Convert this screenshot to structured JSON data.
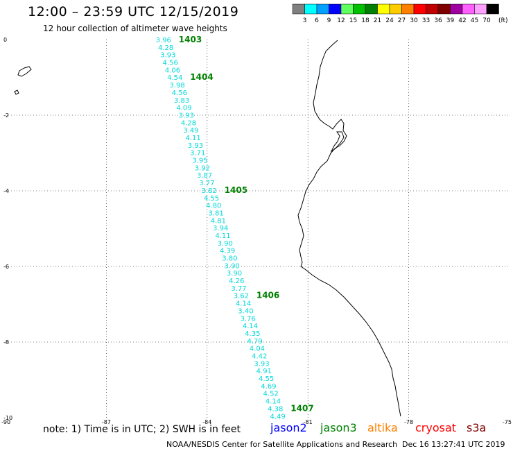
{
  "header": {
    "title": "12:00 – 23:59 UTC 12/15/2019",
    "subtitle": "12 hour collection of altimeter wave heights"
  },
  "legend": {
    "unit_label": "(ft)",
    "items": [
      {
        "label": "3",
        "color": "#808080"
      },
      {
        "label": "6",
        "color": "#00ffff"
      },
      {
        "label": "9",
        "color": "#00a0ff"
      },
      {
        "label": "12",
        "color": "#0000ff"
      },
      {
        "label": "15",
        "color": "#60ff60"
      },
      {
        "label": "18",
        "color": "#00c000"
      },
      {
        "label": "21",
        "color": "#008000"
      },
      {
        "label": "24",
        "color": "#ffff00"
      },
      {
        "label": "27",
        "color": "#ffcc00"
      },
      {
        "label": "30",
        "color": "#ff8000"
      },
      {
        "label": "33",
        "color": "#ff0000"
      },
      {
        "label": "36",
        "color": "#c00000"
      },
      {
        "label": "39",
        "color": "#800000"
      },
      {
        "label": "42",
        "color": "#a000a0"
      },
      {
        "label": "45",
        "color": "#ff60ff"
      },
      {
        "label": "70",
        "color": "#ffa0ff"
      },
      {
        "label": "",
        "color": "#000000"
      }
    ]
  },
  "map": {
    "lat_labels": [
      "0",
      "-2",
      "-4",
      "-6",
      "-8",
      "-10"
    ],
    "lon_labels": [
      "-90",
      "-87",
      "-84",
      "-81",
      "-78",
      "-75"
    ],
    "lat_values": [
      0,
      -2,
      -4,
      -6,
      -8,
      -10
    ],
    "lon_values": [
      -90,
      -87,
      -84,
      -81,
      -78,
      -75
    ],
    "grid": true,
    "track_color": "#00d8d8",
    "time_color": "#008000"
  },
  "chart_data": {
    "type": "scatter",
    "title": "12:00 – 23:59 UTC 12/15/2019",
    "subtitle": "12 hour collection of altimeter wave heights",
    "xlim": [
      -90,
      -75
    ],
    "ylim": [
      -10,
      0
    ],
    "unit": "ft",
    "swh_values": [
      "3.96",
      "4.28",
      "3.93",
      "4.56",
      "4.06",
      "4.54",
      "3.98",
      "4.56",
      "3.83",
      "4.09",
      "3.93",
      "4.28",
      "3.49",
      "4.11",
      "3.93",
      "3.71",
      "3.95",
      "3.92",
      "3.87",
      "3.77",
      "3.82",
      "4.55",
      "4.80",
      "3.81",
      "4.81",
      "3.94",
      "4.11",
      "3.90",
      "4.39",
      "3.80",
      "3.90",
      "3.90",
      "4.26",
      "3.77",
      "3.62",
      "4.14",
      "3.40",
      "3.76",
      "4.14",
      "4.35",
      "4.79",
      "4.04",
      "4.42",
      "3.93",
      "4.91",
      "4.55",
      "4.69",
      "4.52",
      "4.14",
      "4.38",
      "4.49"
    ],
    "track_start": {
      "lon": -85.3,
      "lat": 0.0
    },
    "track_end": {
      "lon": -81.9,
      "lat": -9.95
    },
    "time_labels": [
      {
        "text": "1403",
        "index": 0
      },
      {
        "text": "1404",
        "index": 5
      },
      {
        "text": "1405",
        "index": 20
      },
      {
        "text": "1406",
        "index": 34
      },
      {
        "text": "1407",
        "index": 49
      }
    ]
  },
  "footer": {
    "note": "note: 1) Time is in UTC; 2) SWH is in feet",
    "satellites": [
      {
        "name": "jason2",
        "color": "#0000ff"
      },
      {
        "name": "jason3",
        "color": "#008000"
      },
      {
        "name": "altika",
        "color": "#ff8000"
      },
      {
        "name": "cryosat",
        "color": "#ff0000"
      },
      {
        "name": "s3a",
        "color": "#800000"
      }
    ],
    "credit": "NOAA/NESDIS Center for Satellite Applications and Research",
    "timestamp": "Dec 16 13:27:41 UTC 2019"
  }
}
